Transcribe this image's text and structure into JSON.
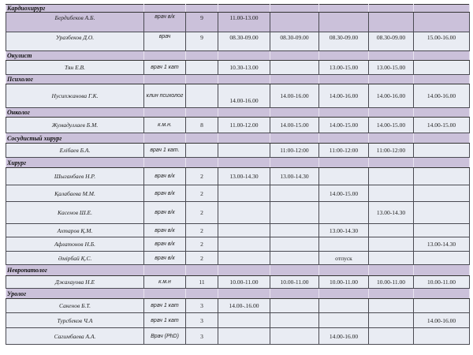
{
  "sections": [
    {
      "title": "Кардиохирург",
      "doctors": [
        {
          "name": "Бердибеков А.Б.",
          "qual": "врач в/к",
          "num": "9",
          "days": [
            "11.00-13.00",
            "",
            "",
            "",
            ""
          ]
        },
        {
          "name": "Уразбеков Д.О.",
          "qual": "врач",
          "num": "9",
          "days": [
            "08.30-09.00",
            "08.30-09.00",
            "08.30-09.00",
            "08.30-09.00",
            "15.00-16.00"
          ]
        }
      ]
    },
    {
      "title": "Окулист",
      "doctors": [
        {
          "name": "Тян Е.В.",
          "qual": "врач  1 кат",
          "num": "",
          "days": [
            "10.30-13.00",
            "",
            "13.00-15.00",
            "13.00-15.00",
            ""
          ]
        }
      ]
    },
    {
      "title": "Психолог",
      "doctors": [
        {
          "name": "Нусипжанова Г.К.",
          "qual": "клин психолог",
          "num": "",
          "days": [
            "14.00-16.00",
            "14.00-16.00",
            "14.00-16.00",
            "14.00-16.00",
            "14.00-16.00"
          ]
        }
      ]
    },
    {
      "title": "Онколог",
      "doctors": [
        {
          "name": "Жумадуллаев Б.М.",
          "qual": "к.м.н.",
          "num": "8",
          "days": [
            "11.00-12.00",
            "14.00-15.00",
            "14.00-15.00",
            "14.00-15.00",
            "14.00-15.00"
          ]
        }
      ]
    },
    {
      "title": "Сосудистый хирург",
      "doctors": [
        {
          "name": "Елібаев Б.А.",
          "qual": "врач 1 кат.",
          "num": "",
          "days": [
            "",
            "11:00-12:00",
            "11:00-12:00",
            "11:00-12:00",
            ""
          ]
        }
      ]
    },
    {
      "title": "Хирург",
      "doctors": [
        {
          "name": "Шыганбаев  Н.Р.",
          "qual": "врач в/к",
          "num": "2",
          "days": [
            "13.00-14.30",
            "13.00-14.30",
            "",
            "",
            ""
          ]
        },
        {
          "name": "Қалабаева М.М.",
          "qual": "врач в/к",
          "num": "2",
          "days": [
            "",
            "",
            "14.00-15.00",
            "",
            ""
          ]
        },
        {
          "name": "Касенов Ш.Е.",
          "qual": "врач в/к",
          "num": "2",
          "days": [
            "",
            "",
            "",
            "13.00-14.30",
            ""
          ]
        },
        {
          "name": "Ахтаров Қ.М.",
          "qual": "врач в/к",
          "num": "2",
          "days": [
            "",
            "",
            "13.00-14.30",
            "",
            ""
          ]
        },
        {
          "name": "Афлатонов Н.Б.",
          "qual": "врач в/к",
          "num": "2",
          "days": [
            "",
            "",
            "",
            "",
            "13.00-14.30"
          ]
        },
        {
          "name": "Әмірбай Қ.С.",
          "qual": "врач в/к",
          "num": "2",
          "days": [
            "",
            "",
            "отпуск",
            "",
            ""
          ]
        }
      ]
    },
    {
      "title": "Невропатолог",
      "doctors": [
        {
          "name": "Джахауова  Н.Е",
          "qual": "к.м.н",
          "num": "11",
          "days": [
            "10.00-11.00",
            "10.00-11.00",
            "10.00-11.00",
            "10.00-11.00",
            "10.00-11.00"
          ]
        }
      ]
    },
    {
      "title": "Уролог",
      "doctors": [
        {
          "name": "Сакенов  Б.Т.",
          "qual": "врач 1 кат",
          "num": "3",
          "days": [
            "14.00-.16.00",
            "",
            "",
            "",
            ""
          ]
        },
        {
          "name": "Турсбеков  Ч.А",
          "qual": "врач 1 кат",
          "num": "3",
          "days": [
            "",
            "",
            "",
            "",
            "14.00-16.00"
          ]
        },
        {
          "name": "Сагимбаева А.А.",
          "qual": "Врач (PhD)",
          "num": "3",
          "days": [
            "",
            "",
            "14.00-16.00",
            "",
            ""
          ]
        }
      ]
    }
  ],
  "colors": {
    "section_bg": "#cbc1da",
    "row_bg": "#e9ecf3",
    "border": "#4a4a52"
  }
}
